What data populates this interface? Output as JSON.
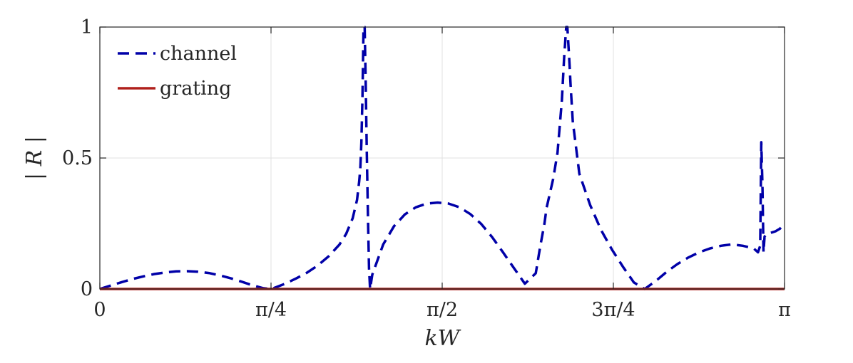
{
  "chart_data": {
    "type": "line",
    "xlabel": "kW",
    "ylabel": "| R |",
    "xlim": [
      0,
      3.14159
    ],
    "ylim": [
      0,
      1
    ],
    "grid": true,
    "legend_position": "top-left",
    "x_ticks": [
      {
        "value": 0,
        "label": "0"
      },
      {
        "value": 0.7854,
        "label": "π/4"
      },
      {
        "value": 1.5708,
        "label": "π/2"
      },
      {
        "value": 2.3562,
        "label": "3π/4"
      },
      {
        "value": 3.14159,
        "label": "π"
      }
    ],
    "y_ticks": [
      {
        "value": 0,
        "label": "0"
      },
      {
        "value": 0.5,
        "label": "0.5"
      },
      {
        "value": 1,
        "label": "1"
      }
    ],
    "series": [
      {
        "name": "channel",
        "style": "dashed",
        "color": "#0000a8",
        "x": [
          0,
          0.05,
          0.1,
          0.15,
          0.2,
          0.25,
          0.3,
          0.35,
          0.4,
          0.45,
          0.5,
          0.55,
          0.6,
          0.65,
          0.7,
          0.75,
          0.7854,
          0.8,
          0.85,
          0.9,
          0.95,
          1.0,
          1.05,
          1.1,
          1.13,
          1.16,
          1.18,
          1.19,
          1.195,
          1.2,
          1.205,
          1.21,
          1.215,
          1.22,
          1.225,
          1.23,
          1.235,
          1.24,
          1.25,
          1.3,
          1.35,
          1.4,
          1.45,
          1.5,
          1.55,
          1.6,
          1.65,
          1.7,
          1.75,
          1.8,
          1.85,
          1.9,
          1.95,
          2.0,
          2.02,
          2.04,
          2.05,
          2.08,
          2.1,
          2.12,
          2.13,
          2.14,
          2.145,
          2.15,
          2.155,
          2.16,
          2.17,
          2.2,
          2.25,
          2.3,
          2.35,
          2.4,
          2.45,
          2.5,
          2.55,
          2.6,
          2.65,
          2.7,
          2.75,
          2.8,
          2.85,
          2.9,
          2.95,
          3.0,
          3.02,
          3.03,
          3.035,
          3.04,
          3.045,
          3.05,
          3.06,
          3.08,
          3.1,
          3.12,
          3.14159
        ],
        "y": [
          0,
          0.013,
          0.026,
          0.038,
          0.048,
          0.057,
          0.063,
          0.067,
          0.068,
          0.066,
          0.061,
          0.052,
          0.041,
          0.028,
          0.014,
          0.003,
          0,
          0.004,
          0.02,
          0.04,
          0.062,
          0.09,
          0.125,
          0.17,
          0.21,
          0.27,
          0.34,
          0.41,
          0.46,
          0.56,
          0.73,
          1.0,
          1.0,
          0.78,
          0.52,
          0.28,
          0.08,
          0,
          0.055,
          0.17,
          0.24,
          0.285,
          0.312,
          0.326,
          0.33,
          0.326,
          0.312,
          0.286,
          0.248,
          0.198,
          0.14,
          0.08,
          0.02,
          0.06,
          0.16,
          0.25,
          0.31,
          0.42,
          0.52,
          0.72,
          0.88,
          1.0,
          1.0,
          0.93,
          0.86,
          0.78,
          0.64,
          0.44,
          0.32,
          0.225,
          0.15,
          0.085,
          0.025,
          0,
          0.03,
          0.065,
          0.095,
          0.12,
          0.14,
          0.155,
          0.165,
          0.17,
          0.165,
          0.155,
          0.14,
          0.165,
          0.56,
          0.4,
          0.14,
          0.2,
          0.21,
          0.215,
          0.22,
          0.23,
          0.25
        ]
      },
      {
        "name": "grating",
        "style": "solid",
        "color": "#b0201c",
        "x": [
          0,
          3.14159
        ],
        "y": [
          0,
          0
        ]
      }
    ]
  }
}
